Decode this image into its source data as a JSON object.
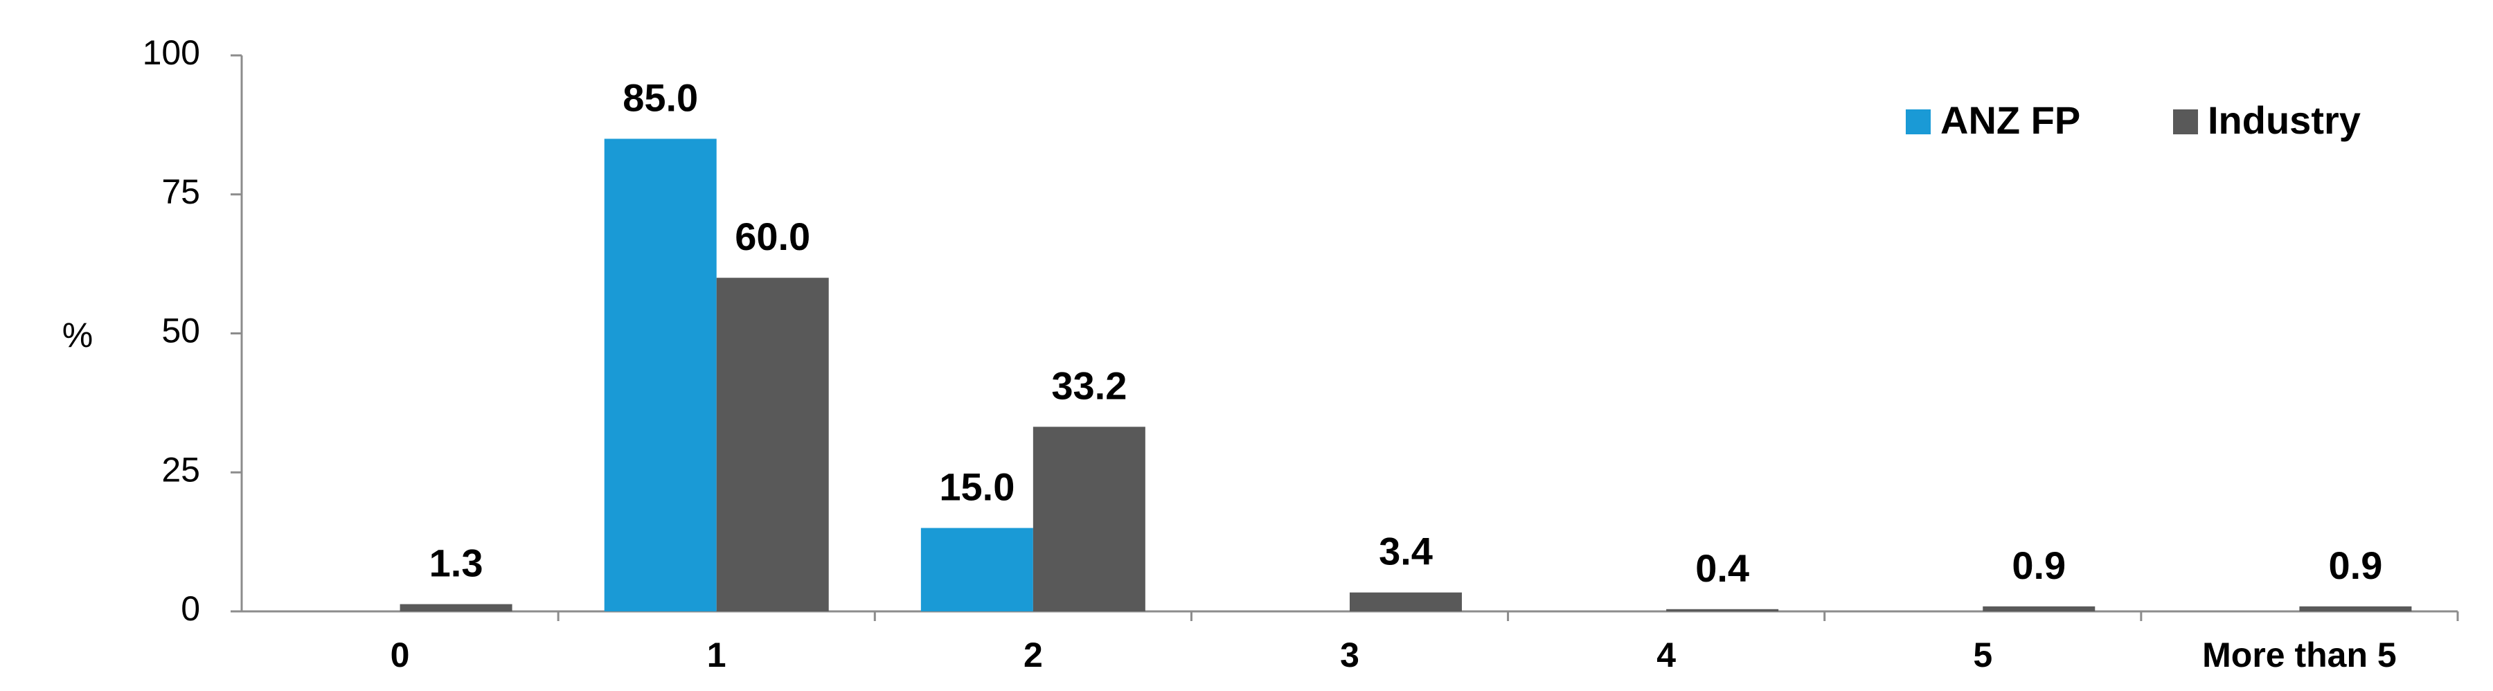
{
  "chart_data": {
    "type": "bar",
    "ylabel": "%",
    "ylim": [
      0,
      100
    ],
    "yticks": [
      "0",
      "25",
      "50",
      "75",
      "100"
    ],
    "categories": [
      "0",
      "1",
      "2",
      "3",
      "4",
      "5",
      "More than 5"
    ],
    "series": [
      {
        "name": "ANZ FP",
        "color": "#1a9ad6",
        "values": [
          0,
          85.0,
          15.0,
          0,
          0,
          0,
          0
        ],
        "labels": [
          "",
          "85.0",
          "15.0",
          "",
          "",
          "",
          ""
        ]
      },
      {
        "name": "Industry",
        "color": "#595959",
        "values": [
          1.3,
          60.0,
          33.2,
          3.4,
          0.4,
          0.9,
          0.9
        ],
        "labels": [
          "1.3",
          "60.0",
          "33.2",
          "3.4",
          "0.4",
          "0.9",
          "0.9"
        ]
      }
    ],
    "legend": "top-right",
    "grid": false
  }
}
